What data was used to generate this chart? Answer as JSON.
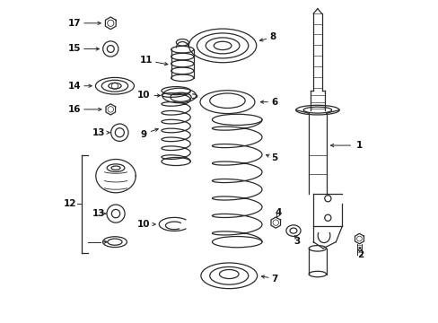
{
  "bg_color": "#ffffff",
  "line_color": "#2a2a2a",
  "label_color": "#111111",
  "figsize": [
    4.89,
    3.6
  ],
  "dpi": 100,
  "xlim": [
    0,
    10
  ],
  "ylim": [
    0,
    10
  ],
  "label_fs": 7.5
}
